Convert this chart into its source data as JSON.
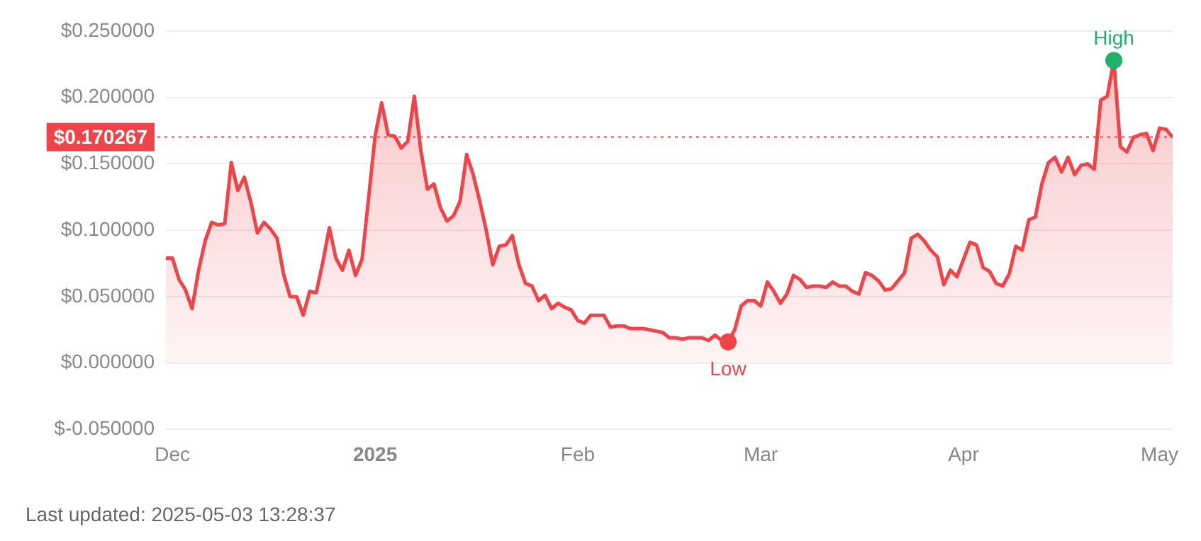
{
  "chart_data": {
    "type": "area",
    "x": [
      "2024-11-30",
      "2024-12-01",
      "2024-12-02",
      "2024-12-03",
      "2024-12-04",
      "2024-12-05",
      "2024-12-06",
      "2024-12-07",
      "2024-12-08",
      "2024-12-09",
      "2024-12-10",
      "2024-12-11",
      "2024-12-12",
      "2024-12-13",
      "2024-12-14",
      "2024-12-15",
      "2024-12-16",
      "2024-12-17",
      "2024-12-18",
      "2024-12-19",
      "2024-12-20",
      "2024-12-21",
      "2024-12-22",
      "2024-12-23",
      "2024-12-24",
      "2024-12-25",
      "2024-12-26",
      "2024-12-27",
      "2024-12-28",
      "2024-12-29",
      "2024-12-30",
      "2024-12-31",
      "2025-01-01",
      "2025-01-02",
      "2025-01-03",
      "2025-01-04",
      "2025-01-05",
      "2025-01-06",
      "2025-01-07",
      "2025-01-08",
      "2025-01-09",
      "2025-01-10",
      "2025-01-11",
      "2025-01-12",
      "2025-01-13",
      "2025-01-14",
      "2025-01-15",
      "2025-01-16",
      "2025-01-17",
      "2025-01-18",
      "2025-01-19",
      "2025-01-20",
      "2025-01-21",
      "2025-01-22",
      "2025-01-23",
      "2025-01-24",
      "2025-01-25",
      "2025-01-26",
      "2025-01-27",
      "2025-01-28",
      "2025-01-29",
      "2025-01-30",
      "2025-01-31",
      "2025-02-01",
      "2025-02-02",
      "2025-02-03",
      "2025-02-04",
      "2025-02-05",
      "2025-02-06",
      "2025-02-07",
      "2025-02-08",
      "2025-02-09",
      "2025-02-10",
      "2025-02-11",
      "2025-02-12",
      "2025-02-13",
      "2025-02-14",
      "2025-02-15",
      "2025-02-16",
      "2025-02-17",
      "2025-02-18",
      "2025-02-19",
      "2025-02-20",
      "2025-02-21",
      "2025-02-22",
      "2025-02-23",
      "2025-02-24",
      "2025-02-25",
      "2025-02-26",
      "2025-02-27",
      "2025-02-28",
      "2025-03-01",
      "2025-03-02",
      "2025-03-03",
      "2025-03-04",
      "2025-03-05",
      "2025-03-06",
      "2025-03-07",
      "2025-03-08",
      "2025-03-09",
      "2025-03-10",
      "2025-03-11",
      "2025-03-12",
      "2025-03-13",
      "2025-03-14",
      "2025-03-15",
      "2025-03-16",
      "2025-03-17",
      "2025-03-18",
      "2025-03-19",
      "2025-03-20",
      "2025-03-21",
      "2025-03-22",
      "2025-03-23",
      "2025-03-24",
      "2025-03-25",
      "2025-03-26",
      "2025-03-27",
      "2025-03-28",
      "2025-03-29",
      "2025-03-30",
      "2025-03-31",
      "2025-04-01",
      "2025-04-02",
      "2025-04-03",
      "2025-04-04",
      "2025-04-05",
      "2025-04-06",
      "2025-04-07",
      "2025-04-08",
      "2025-04-09",
      "2025-04-10",
      "2025-04-11",
      "2025-04-12",
      "2025-04-13",
      "2025-04-14",
      "2025-04-15",
      "2025-04-16",
      "2025-04-17",
      "2025-04-18",
      "2025-04-19",
      "2025-04-20",
      "2025-04-21",
      "2025-04-22",
      "2025-04-23",
      "2025-04-24",
      "2025-04-25",
      "2025-04-26",
      "2025-04-27",
      "2025-04-28",
      "2025-04-29",
      "2025-04-30",
      "2025-05-01",
      "2025-05-02",
      "2025-05-03"
    ],
    "series": [
      {
        "color": "#ef454a",
        "values": [
          0.079,
          0.079,
          0.063,
          0.055,
          0.041,
          0.07,
          0.092,
          0.106,
          0.104,
          0.105,
          0.151,
          0.13,
          0.14,
          0.121,
          0.098,
          0.106,
          0.101,
          0.094,
          0.067,
          0.05,
          0.05,
          0.036,
          0.054,
          0.053,
          0.076,
          0.102,
          0.079,
          0.07,
          0.085,
          0.066,
          0.078,
          0.124,
          0.171,
          0.196,
          0.172,
          0.171,
          0.162,
          0.167,
          0.201,
          0.16,
          0.131,
          0.135,
          0.117,
          0.107,
          0.111,
          0.122,
          0.157,
          0.142,
          0.122,
          0.1,
          0.074,
          0.088,
          0.089,
          0.096,
          0.074,
          0.06,
          0.058,
          0.047,
          0.051,
          0.041,
          0.045,
          0.042,
          0.04,
          0.032,
          0.03,
          0.036,
          0.036,
          0.036,
          0.027,
          0.028,
          0.028,
          0.026,
          0.026,
          0.026,
          0.025,
          0.024,
          0.023,
          0.019,
          0.019,
          0.018,
          0.019,
          0.019,
          0.019,
          0.017,
          0.021,
          0.017,
          0.016,
          0.025,
          0.043,
          0.047,
          0.047,
          0.043,
          0.061,
          0.054,
          0.045,
          0.052,
          0.066,
          0.063,
          0.057,
          0.058,
          0.058,
          0.057,
          0.061,
          0.058,
          0.058,
          0.054,
          0.052,
          0.068,
          0.066,
          0.062,
          0.055,
          0.056,
          0.062,
          0.068,
          0.094,
          0.097,
          0.092,
          0.085,
          0.08,
          0.059,
          0.07,
          0.065,
          0.078,
          0.091,
          0.089,
          0.072,
          0.069,
          0.06,
          0.058,
          0.067,
          0.088,
          0.085,
          0.108,
          0.11,
          0.135,
          0.151,
          0.155,
          0.144,
          0.155,
          0.142,
          0.149,
          0.15,
          0.146,
          0.198,
          0.201,
          0.228,
          0.163,
          0.159,
          0.17,
          0.172,
          0.173,
          0.16,
          0.177,
          0.176,
          0.17
        ]
      }
    ],
    "xlim": [
      "2024-11-30",
      "2025-05-03"
    ],
    "xticks": [
      {
        "value": "2024-12-01",
        "label": "Dec"
      },
      {
        "value": "2025-01-01",
        "label": "2025"
      },
      {
        "value": "2025-02-01",
        "label": "Feb"
      },
      {
        "value": "2025-03-01",
        "label": "Mar"
      },
      {
        "value": "2025-04-01",
        "label": "Apr"
      },
      {
        "value": "2025-05-01",
        "label": "May"
      }
    ],
    "ylim": [
      -0.05,
      0.25
    ],
    "yticks": [
      {
        "value": -0.05,
        "label": "$-0.050000"
      },
      {
        "value": 0,
        "label": "$0.000000"
      },
      {
        "value": 0.05,
        "label": "$0.050000"
      },
      {
        "value": 0.1,
        "label": "$0.100000"
      },
      {
        "value": 0.15,
        "label": "$0.150000"
      },
      {
        "value": 0.2,
        "label": "$0.200000"
      },
      {
        "value": 0.25,
        "label": "$0.250000"
      }
    ],
    "grid": "y",
    "legend": false,
    "marker": "none",
    "line_style": "solid",
    "ref_lines": [
      {
        "axis": "y",
        "value": 0.170267,
        "label": "$0.170267",
        "color": "#ef454a",
        "line_style": "dotted"
      }
    ],
    "annotations": [
      {
        "text": "High",
        "x": "2025-04-24",
        "y": 0.228
      },
      {
        "text": "Low",
        "x": "2025-02-24",
        "y": 0.016
      },
      "Last updated: 2025-05-03 13:28:37"
    ]
  }
}
